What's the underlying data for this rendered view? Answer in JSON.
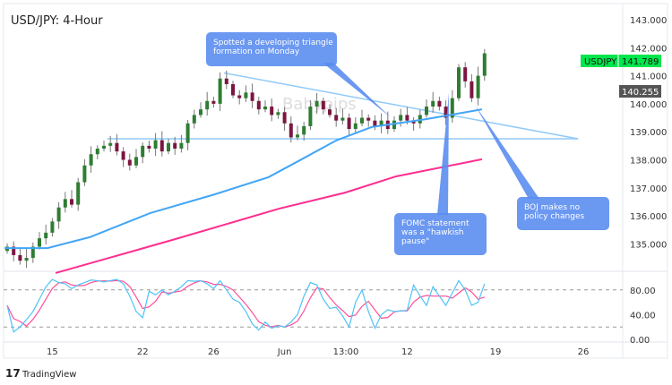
{
  "chart_data": {
    "type": "candlestick",
    "title": "USD/JPY: 4-Hour",
    "symbol": "USDJPY",
    "last_price": "141.789",
    "marker_price": "140.255",
    "watermark": "Babypips",
    "footer_brand": "TradingView",
    "price_ticks": [
      "143.000",
      "142.000",
      "141.000",
      "140.000",
      "139.000",
      "138.000",
      "137.000",
      "136.000",
      "135.000"
    ],
    "price_tick_values": [
      143,
      142,
      141,
      140,
      139,
      138,
      137,
      136,
      135
    ],
    "ylim": [
      133.9,
      143.5
    ],
    "time_ticks": [
      {
        "label": "15",
        "index": 7
      },
      {
        "label": "22",
        "index": 21
      },
      {
        "label": "26",
        "index": 32
      },
      {
        "label": "Jun",
        "index": 43
      },
      {
        "label": "13:00",
        "index": 52.5
      },
      {
        "label": "12",
        "index": 62
      },
      {
        "label": "19",
        "index": 75.7
      },
      {
        "label": "26",
        "index": 89.3
      }
    ],
    "closes": [
      134.9,
      134.6,
      134.4,
      134.5,
      134.9,
      135.2,
      135.4,
      135.8,
      136.3,
      136.6,
      136.4,
      137.2,
      137.8,
      138.2,
      138.4,
      138.5,
      138.6,
      138.3,
      138.0,
      137.8,
      138.1,
      138.5,
      138.4,
      138.7,
      138.3,
      138.6,
      138.4,
      138.6,
      139.3,
      139.6,
      139.8,
      140.1,
      140.0,
      140.9,
      140.7,
      140.3,
      140.2,
      140.4,
      140.1,
      139.8,
      139.9,
      139.6,
      139.7,
      139.3,
      138.8,
      138.9,
      139.2,
      139.9,
      140.1,
      139.8,
      139.6,
      139.4,
      139.5,
      139.1,
      139.3,
      139.5,
      139.4,
      139.2,
      139.4,
      139.1,
      139.4,
      139.6,
      139.4,
      139.3,
      139.6,
      139.9,
      140.1,
      139.9,
      139.5,
      140.2,
      141.3,
      140.8,
      140.2,
      141.0,
      141.8
    ],
    "ma_fast": [
      [
        -0.4,
        134.85
      ],
      [
        3.75,
        134.85
      ],
      [
        6.25,
        134.85
      ],
      [
        12.8,
        135.24
      ],
      [
        22.2,
        136.1
      ],
      [
        32.2,
        136.77
      ],
      [
        40.5,
        137.38
      ],
      [
        45.1,
        137.95
      ],
      [
        51,
        138.69
      ],
      [
        56.5,
        139.17
      ],
      [
        64.9,
        139.45
      ],
      [
        73.6,
        139.8
      ]
    ],
    "ma_slow": [
      [
        7.5,
        133.96
      ],
      [
        25.6,
        135.14
      ],
      [
        42.2,
        136.26
      ],
      [
        52.4,
        136.83
      ],
      [
        60.3,
        137.41
      ],
      [
        73.6,
        138.02
      ]
    ],
    "support_line": {
      "from_index": 15.5,
      "to_index": 88.5,
      "price": 138.75
    },
    "descending_line": {
      "from": [
        33.6,
        141.1
      ],
      "to": [
        88.5,
        138.75
      ]
    },
    "stoch_ticks": [
      "80.00",
      "40.00",
      "0.00"
    ],
    "stoch_tick_values": [
      80,
      40,
      0
    ],
    "stoch_levels": [
      80,
      20
    ],
    "stoch_k": [
      55,
      12,
      20,
      32,
      45,
      65,
      85,
      97,
      92,
      90,
      82,
      88,
      92,
      96,
      95,
      93,
      95,
      97,
      90,
      70,
      45,
      35,
      78,
      72,
      80,
      72,
      78,
      85,
      95,
      94,
      95,
      90,
      82,
      95,
      80,
      65,
      60,
      45,
      25,
      15,
      28,
      18,
      22,
      20,
      28,
      40,
      70,
      92,
      88,
      65,
      50,
      52,
      38,
      20,
      60,
      80,
      45,
      18,
      40,
      48,
      45,
      46,
      47,
      88,
      70,
      55,
      85,
      70,
      55,
      75,
      95,
      80,
      55,
      60,
      90
    ],
    "annotations": [
      {
        "text": "Spotted a developing triangle formation on Monday",
        "lines": [
          "Spotted a developing triangle",
          "formation on Monday"
        ]
      },
      {
        "text": "FOMC statement was a \"hawkish pause\"",
        "lines": [
          "FOMC statement",
          "was a \"hawkish",
          "pause\""
        ]
      },
      {
        "text": "BOJ makes no policy changes",
        "lines": [
          "BOJ makes no",
          "policy changes"
        ]
      }
    ],
    "colors": {
      "up": "#2e7d32",
      "down": "#7b1640",
      "ma_fast": "#42a5f5",
      "ma_slow": "#ff2d8f",
      "trend": "#90caf9",
      "callout": "#5b8def",
      "badge": "#00e64d",
      "stoch_k": "#4fc3f7",
      "stoch_d": "#ff4f9a"
    }
  }
}
